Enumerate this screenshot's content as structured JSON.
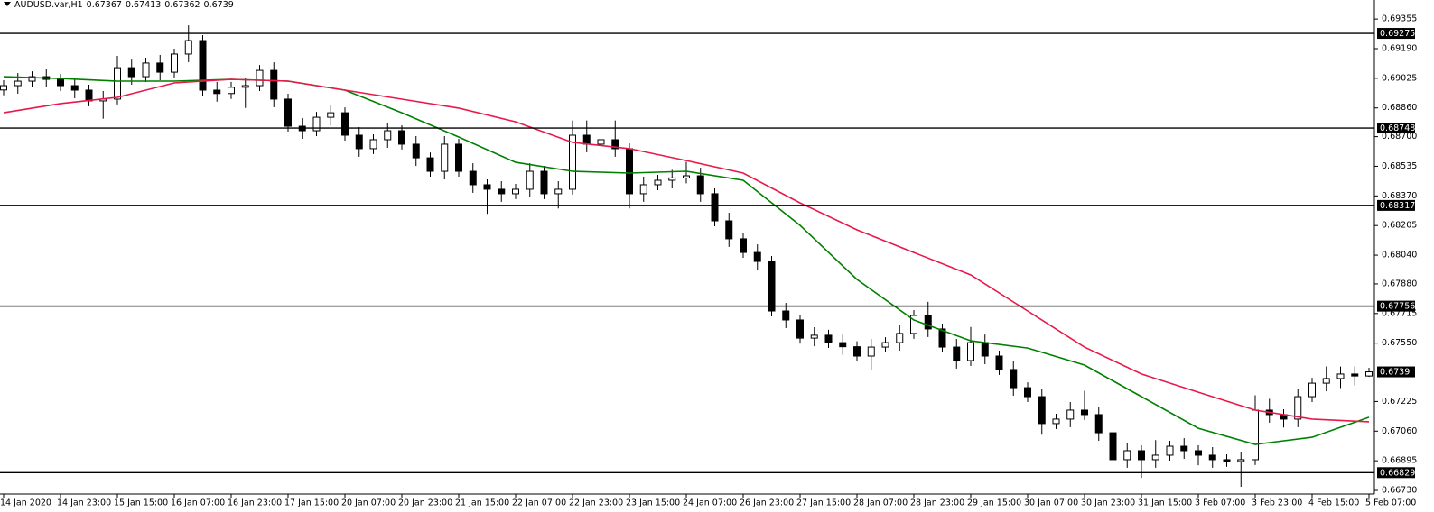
{
  "chart_data": {
    "type": "candlestick",
    "symbol": "AUDUSD.var,H1",
    "categories": [
      "14 Jan 2020",
      null,
      null,
      null,
      "14 Jan 23:00",
      null,
      null,
      null,
      "15 Jan 15:00",
      null,
      null,
      null,
      "16 Jan 07:00",
      null,
      null,
      null,
      "16 Jan 23:00",
      null,
      null,
      null,
      "17 Jan 15:00",
      null,
      null,
      null,
      "20 Jan 07:00",
      null,
      null,
      null,
      "20 Jan 23:00",
      null,
      null,
      null,
      "21 Jan 15:00",
      null,
      null,
      null,
      "22 Jan 07:00",
      null,
      null,
      null,
      "22 Jan 23:00",
      null,
      null,
      null,
      "23 Jan 15:00",
      null,
      null,
      null,
      "24 Jan 07:00",
      null,
      null,
      null,
      "26 Jan 23:00",
      null,
      null,
      null,
      "27 Jan 15:00",
      null,
      null,
      null,
      "28 Jan 07:00",
      null,
      null,
      null,
      "28 Jan 23:00",
      null,
      null,
      null,
      "29 Jan 15:00",
      null,
      null,
      null,
      "30 Jan 07:00",
      null,
      null,
      null,
      "30 Jan 23:00",
      null,
      null,
      null,
      "31 Jan 15:00",
      null,
      null,
      null,
      "3 Feb 07:00",
      null,
      null,
      null,
      "3 Feb 23:00",
      null,
      null,
      null,
      "4 Feb 15:00",
      null,
      null,
      null,
      "5 Feb 07:00"
    ],
    "open": [
      0.6896,
      0.68984,
      0.69009,
      0.69034,
      0.69019,
      0.68984,
      0.68959,
      0.68899,
      0.68909,
      0.69084,
      0.69034,
      0.6911,
      0.69059,
      0.6916,
      0.69235,
      0.68959,
      0.6894,
      0.68975,
      0.68984,
      0.69069,
      0.68909,
      0.68758,
      0.68733,
      0.68808,
      0.68833,
      0.68708,
      0.68633,
      0.68683,
      0.68733,
      0.68658,
      0.68582,
      0.68507,
      0.68658,
      0.68507,
      0.68432,
      0.68407,
      0.68382,
      0.68407,
      0.68507,
      0.68382,
      0.68407,
      0.68708,
      0.68658,
      0.68683,
      0.68633,
      0.68382,
      0.68432,
      0.68457,
      0.6847,
      0.68482,
      0.68382,
      0.68231,
      0.68131,
      0.68055,
      0.68005,
      0.67729,
      0.67679,
      0.67578,
      0.67594,
      0.67553,
      0.6753,
      0.67478,
      0.67528,
      0.67553,
      0.67604,
      0.67704,
      0.67629,
      0.67528,
      0.67453,
      0.67553,
      0.67478,
      0.67403,
      0.67302,
      0.67252,
      0.67102,
      0.67127,
      0.67177,
      0.67152,
      0.67051,
      0.66901,
      0.66951,
      0.66901,
      0.66926,
      0.66976,
      0.66951,
      0.66926,
      0.66901,
      0.66891,
      0.66901,
      0.67177,
      0.67152,
      0.67127,
      0.67252,
      0.67327,
      0.67353,
      0.67378,
      0.67367
    ],
    "high": [
      0.69014,
      0.69054,
      0.69064,
      0.69079,
      0.69049,
      0.69029,
      0.68989,
      0.68954,
      0.6915,
      0.69129,
      0.6914,
      0.69155,
      0.6919,
      0.6932,
      0.69265,
      0.69004,
      0.69005,
      0.69029,
      0.69099,
      0.69114,
      0.68939,
      0.68803,
      0.68838,
      0.68878,
      0.68863,
      0.68753,
      0.68713,
      0.68778,
      0.68763,
      0.68703,
      0.68612,
      0.68703,
      0.68688,
      0.68552,
      0.68462,
      0.68452,
      0.68437,
      0.68552,
      0.68537,
      0.68452,
      0.6879,
      0.6879,
      0.68713,
      0.6879,
      0.68663,
      0.68477,
      0.68487,
      0.68515,
      0.6856,
      0.68527,
      0.68412,
      0.68276,
      0.68161,
      0.681,
      0.68035,
      0.67774,
      0.67709,
      0.67639,
      0.67624,
      0.67598,
      0.6756,
      0.67573,
      0.67583,
      0.67649,
      0.67734,
      0.6778,
      0.67659,
      0.67573,
      0.6764,
      0.67598,
      0.67508,
      0.67448,
      0.67332,
      0.67297,
      0.67157,
      0.67222,
      0.67285,
      0.67197,
      0.67081,
      0.66996,
      0.66981,
      0.6701,
      0.67006,
      0.67021,
      0.66981,
      0.66971,
      0.66931,
      0.66946,
      0.6726,
      0.6724,
      0.67182,
      0.67297,
      0.67357,
      0.6742,
      0.6742,
      0.6742,
      0.67413
    ],
    "low": [
      0.6893,
      0.68939,
      0.68979,
      0.68974,
      0.68954,
      0.68914,
      0.68869,
      0.688,
      0.68879,
      0.68989,
      0.69004,
      0.69014,
      0.69029,
      0.69115,
      0.68929,
      0.68895,
      0.6891,
      0.6886,
      0.68954,
      0.68864,
      0.68728,
      0.68688,
      0.68703,
      0.68763,
      0.68678,
      0.68588,
      0.68603,
      0.68638,
      0.68628,
      0.68537,
      0.68477,
      0.68462,
      0.68477,
      0.68387,
      0.6827,
      0.68337,
      0.68352,
      0.68362,
      0.68352,
      0.683,
      0.68377,
      0.68613,
      0.68628,
      0.68588,
      0.683,
      0.68337,
      0.68402,
      0.68412,
      0.6844,
      0.68337,
      0.68201,
      0.68086,
      0.68025,
      0.6796,
      0.67699,
      0.67634,
      0.67548,
      0.67533,
      0.67523,
      0.67485,
      0.67448,
      0.674,
      0.67498,
      0.67508,
      0.67574,
      0.67584,
      0.67498,
      0.67408,
      0.67423,
      0.67433,
      0.67373,
      0.67257,
      0.67222,
      0.6704,
      0.67072,
      0.67082,
      0.67122,
      0.67006,
      0.6679,
      0.66856,
      0.668,
      0.66856,
      0.66896,
      0.66906,
      0.6687,
      0.66856,
      0.66861,
      0.6675,
      0.66871,
      0.67107,
      0.6708,
      0.67082,
      0.67222,
      0.67282,
      0.673,
      0.67315,
      0.67362
    ],
    "close": [
      0.68984,
      0.69009,
      0.69034,
      0.69019,
      0.68984,
      0.68959,
      0.68899,
      0.68909,
      0.69084,
      0.69034,
      0.6911,
      0.69059,
      0.6916,
      0.69235,
      0.68959,
      0.6894,
      0.68975,
      0.68984,
      0.69069,
      0.68909,
      0.68758,
      0.68733,
      0.68808,
      0.68833,
      0.68708,
      0.68633,
      0.68683,
      0.68733,
      0.68658,
      0.68582,
      0.68507,
      0.68658,
      0.68507,
      0.68432,
      0.68407,
      0.68382,
      0.68407,
      0.68507,
      0.68382,
      0.68407,
      0.68708,
      0.68658,
      0.68683,
      0.68633,
      0.68382,
      0.68432,
      0.68457,
      0.6847,
      0.68482,
      0.68382,
      0.68231,
      0.68131,
      0.68055,
      0.68005,
      0.67729,
      0.67679,
      0.67578,
      0.67594,
      0.67553,
      0.6753,
      0.67478,
      0.67528,
      0.67553,
      0.67604,
      0.67704,
      0.67629,
      0.67528,
      0.67453,
      0.67553,
      0.67478,
      0.67403,
      0.67302,
      0.67252,
      0.67102,
      0.67127,
      0.67177,
      0.67152,
      0.67051,
      0.66901,
      0.66951,
      0.66901,
      0.66926,
      0.66976,
      0.66951,
      0.66926,
      0.66901,
      0.66891,
      0.66901,
      0.67177,
      0.67152,
      0.67127,
      0.67252,
      0.67327,
      0.67353,
      0.67378,
      0.67367,
      0.6739
    ],
    "up_color": "#ffffff",
    "down_color": "#000000",
    "wick_color": "#000000",
    "series": [
      {
        "color": "#008000",
        "x": [
          0,
          4,
          8,
          12,
          16,
          20,
          24,
          28,
          32,
          36,
          40,
          44,
          48,
          52,
          56,
          60,
          64,
          68,
          72,
          76,
          80,
          84,
          88,
          92,
          96
        ],
        "values": [
          0.69034,
          0.69024,
          0.69009,
          0.69009,
          0.69019,
          0.69009,
          0.68959,
          0.68833,
          0.68698,
          0.68557,
          0.68507,
          0.68497,
          0.68507,
          0.68457,
          0.68206,
          0.67905,
          0.67679,
          0.67563,
          0.67523,
          0.67428,
          0.67252,
          0.67076,
          0.66986,
          0.67026,
          0.67137
        ]
      },
      {
        "color": "#e8194a",
        "x": [
          0,
          4,
          8,
          12,
          16,
          20,
          24,
          28,
          32,
          36,
          40,
          44,
          48,
          52,
          56,
          60,
          64,
          68,
          72,
          76,
          80,
          84,
          88,
          92,
          96
        ],
        "values": [
          0.68833,
          0.68884,
          0.68919,
          0.68999,
          0.69019,
          0.69009,
          0.68959,
          0.68909,
          0.68859,
          0.68783,
          0.68668,
          0.68633,
          0.68567,
          0.68497,
          0.68331,
          0.68181,
          0.68055,
          0.6793,
          0.67729,
          0.67528,
          0.67378,
          0.67277,
          0.67177,
          0.67127,
          0.67112
        ]
      }
    ],
    "levels": [
      0.69275,
      0.68748,
      0.68317,
      0.67756,
      0.66829
    ],
    "ylim": [
      0.6671,
      0.69461
    ],
    "yticks": [
      {
        "value": 0.69355,
        "label": "0.69355"
      },
      {
        "value": 0.6919,
        "label": "0.69190"
      },
      {
        "value": 0.69025,
        "label": "0.69025"
      },
      {
        "value": 0.6886,
        "label": "0.68860"
      },
      {
        "value": 0.687,
        "label": "0.68700"
      },
      {
        "value": 0.68535,
        "label": "0.68535"
      },
      {
        "value": 0.6837,
        "label": "0.68370"
      },
      {
        "value": 0.68205,
        "label": "0.68205"
      },
      {
        "value": 0.6804,
        "label": "0.68040"
      },
      {
        "value": 0.6788,
        "label": "0.67880"
      },
      {
        "value": 0.67715,
        "label": "0.67715"
      },
      {
        "value": 0.6755,
        "label": "0.67550"
      },
      {
        "value": 0.67225,
        "label": "0.67225"
      },
      {
        "value": 0.6706,
        "label": "0.67060"
      },
      {
        "value": 0.66895,
        "label": "0.66895"
      },
      {
        "value": 0.6673,
        "label": "0.66730"
      }
    ]
  }
}
